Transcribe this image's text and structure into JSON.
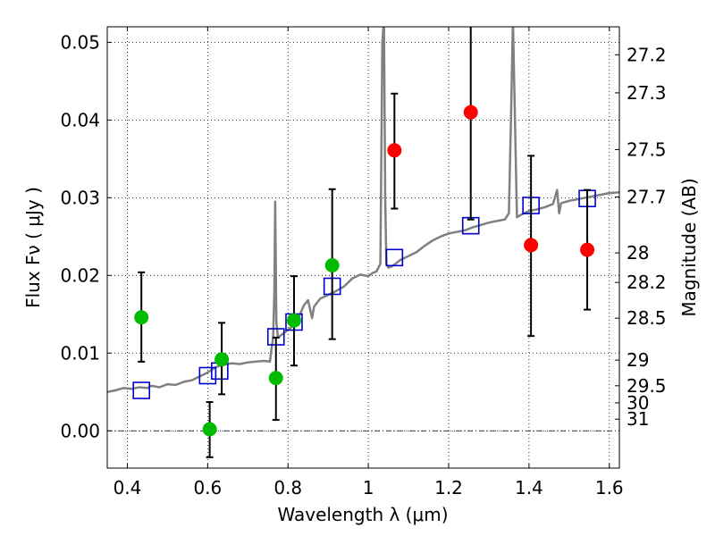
{
  "chart_data": {
    "type": "scatter",
    "xlabel": "Wavelength  λ (μm)",
    "ylabel": "Flux  Fν  ( μJy )",
    "ylabel_right": "Magnitude (AB)",
    "xlim": [
      0.35,
      1.625
    ],
    "ylim": [
      -0.0048,
      0.052
    ],
    "grid": true,
    "x_ticks": [
      0.4,
      0.6,
      0.8,
      1.0,
      1.2,
      1.4,
      1.6
    ],
    "x_tick_labels": [
      "0.4",
      "0.6",
      "0.8",
      "1",
      "1.2",
      "1.4",
      "1.6"
    ],
    "y_ticks": [
      0.0,
      0.01,
      0.02,
      0.03,
      0.04,
      0.05
    ],
    "y_tick_labels": [
      "0.00",
      "0.01",
      "0.02",
      "0.03",
      "0.04",
      "0.05"
    ],
    "mag_ticks": [
      {
        "label": "27.2",
        "flux": 0.0484
      },
      {
        "label": "27.3",
        "flux": 0.0435
      },
      {
        "label": "27.5",
        "flux": 0.0362
      },
      {
        "label": "27.7",
        "flux": 0.0301
      },
      {
        "label": "28",
        "flux": 0.0229
      },
      {
        "label": "28.2",
        "flux": 0.0191
      },
      {
        "label": "28.5",
        "flux": 0.0145
      },
      {
        "label": "29",
        "flux": 0.0091
      },
      {
        "label": "29.5",
        "flux": 0.0058
      },
      {
        "label": "30",
        "flux": 0.0036
      },
      {
        "label": "31",
        "flux": 0.0015
      }
    ],
    "series": [
      {
        "kind": "model-spectrum",
        "color": "#808080",
        "points": [
          [
            0.35,
            0.005
          ],
          [
            0.37,
            0.0052
          ],
          [
            0.39,
            0.0055
          ],
          [
            0.41,
            0.0054
          ],
          [
            0.43,
            0.0056
          ],
          [
            0.45,
            0.0055
          ],
          [
            0.46,
            0.0058
          ],
          [
            0.48,
            0.0056
          ],
          [
            0.5,
            0.006
          ],
          [
            0.52,
            0.0059
          ],
          [
            0.54,
            0.0063
          ],
          [
            0.56,
            0.0065
          ],
          [
            0.58,
            0.007
          ],
          [
            0.6,
            0.0075
          ],
          [
            0.62,
            0.0082
          ],
          [
            0.64,
            0.0085
          ],
          [
            0.66,
            0.0087
          ],
          [
            0.68,
            0.0086
          ],
          [
            0.7,
            0.0088
          ],
          [
            0.72,
            0.0089
          ],
          [
            0.74,
            0.009
          ],
          [
            0.755,
            0.0089
          ],
          [
            0.76,
            0.011
          ],
          [
            0.763,
            0.012
          ],
          [
            0.766,
            0.018
          ],
          [
            0.768,
            0.0295
          ],
          [
            0.771,
            0.014
          ],
          [
            0.775,
            0.012
          ],
          [
            0.78,
            0.0122
          ],
          [
            0.79,
            0.0126
          ],
          [
            0.8,
            0.013
          ],
          [
            0.81,
            0.0134
          ],
          [
            0.82,
            0.0138
          ],
          [
            0.83,
            0.015
          ],
          [
            0.84,
            0.0162
          ],
          [
            0.85,
            0.0168
          ],
          [
            0.86,
            0.0145
          ],
          [
            0.865,
            0.016
          ],
          [
            0.88,
            0.017
          ],
          [
            0.9,
            0.0175
          ],
          [
            0.92,
            0.018
          ],
          [
            0.94,
            0.0186
          ],
          [
            0.96,
            0.0196
          ],
          [
            0.98,
            0.0201
          ],
          [
            1.0,
            0.0199
          ],
          [
            1.01,
            0.0203
          ],
          [
            1.02,
            0.0205
          ],
          [
            1.03,
            0.0215
          ],
          [
            1.035,
            0.05
          ],
          [
            1.039,
            0.053
          ],
          [
            1.042,
            0.03
          ],
          [
            1.045,
            0.0215
          ],
          [
            1.05,
            0.021
          ],
          [
            1.06,
            0.0212
          ],
          [
            1.08,
            0.022
          ],
          [
            1.1,
            0.0225
          ],
          [
            1.12,
            0.023
          ],
          [
            1.14,
            0.0238
          ],
          [
            1.16,
            0.0245
          ],
          [
            1.18,
            0.025
          ],
          [
            1.2,
            0.0254
          ],
          [
            1.22,
            0.0256
          ],
          [
            1.24,
            0.0258
          ],
          [
            1.26,
            0.0262
          ],
          [
            1.28,
            0.0265
          ],
          [
            1.3,
            0.0268
          ],
          [
            1.32,
            0.027
          ],
          [
            1.34,
            0.0272
          ],
          [
            1.35,
            0.028
          ],
          [
            1.355,
            0.04
          ],
          [
            1.36,
            0.053
          ],
          [
            1.365,
            0.04
          ],
          [
            1.37,
            0.0275
          ],
          [
            1.38,
            0.0278
          ],
          [
            1.4,
            0.0283
          ],
          [
            1.42,
            0.0285
          ],
          [
            1.44,
            0.0288
          ],
          [
            1.46,
            0.0292
          ],
          [
            1.47,
            0.031
          ],
          [
            1.475,
            0.028
          ],
          [
            1.48,
            0.0293
          ],
          [
            1.5,
            0.0296
          ],
          [
            1.52,
            0.0298
          ],
          [
            1.54,
            0.03
          ],
          [
            1.56,
            0.0302
          ],
          [
            1.58,
            0.0304
          ],
          [
            1.6,
            0.0306
          ],
          [
            1.625,
            0.0307
          ]
        ]
      },
      {
        "kind": "model-squares",
        "color": "#0000cc",
        "points": [
          [
            0.435,
            0.0052
          ],
          [
            0.6,
            0.0071
          ],
          [
            0.63,
            0.0077
          ],
          [
            0.77,
            0.0121
          ],
          [
            0.815,
            0.014
          ],
          [
            0.91,
            0.0186
          ],
          [
            1.065,
            0.0223
          ],
          [
            1.255,
            0.0264
          ],
          [
            1.405,
            0.029
          ],
          [
            1.545,
            0.0299
          ]
        ]
      },
      {
        "kind": "observed-detections",
        "color": "#00bb00",
        "points": [
          {
            "x": 0.435,
            "y": 0.0146,
            "err_lo": 0.0089,
            "err_hi": 0.0204
          },
          {
            "x": 0.605,
            "y": 0.0002,
            "err_lo": -0.0034,
            "err_hi": 0.0037
          },
          {
            "x": 0.635,
            "y": 0.0092,
            "err_lo": 0.0047,
            "err_hi": 0.0139
          },
          {
            "x": 0.77,
            "y": 0.0068,
            "err_lo": 0.0014,
            "err_hi": 0.012
          },
          {
            "x": 0.815,
            "y": 0.0142,
            "err_lo": 0.0084,
            "err_hi": 0.0199
          },
          {
            "x": 0.91,
            "y": 0.0213,
            "err_lo": 0.0118,
            "err_hi": 0.0311
          }
        ]
      },
      {
        "kind": "observed-ir",
        "color": "#ff0000",
        "points": [
          {
            "x": 1.065,
            "y": 0.0361,
            "err_lo": 0.0286,
            "err_hi": 0.0434
          },
          {
            "x": 1.255,
            "y": 0.041,
            "err_lo": 0.0272,
            "err_hi": 0.053
          },
          {
            "x": 1.405,
            "y": 0.0239,
            "err_lo": 0.0122,
            "err_hi": 0.0354
          },
          {
            "x": 1.545,
            "y": 0.0233,
            "err_lo": 0.0156,
            "err_hi": 0.031
          }
        ]
      }
    ]
  }
}
